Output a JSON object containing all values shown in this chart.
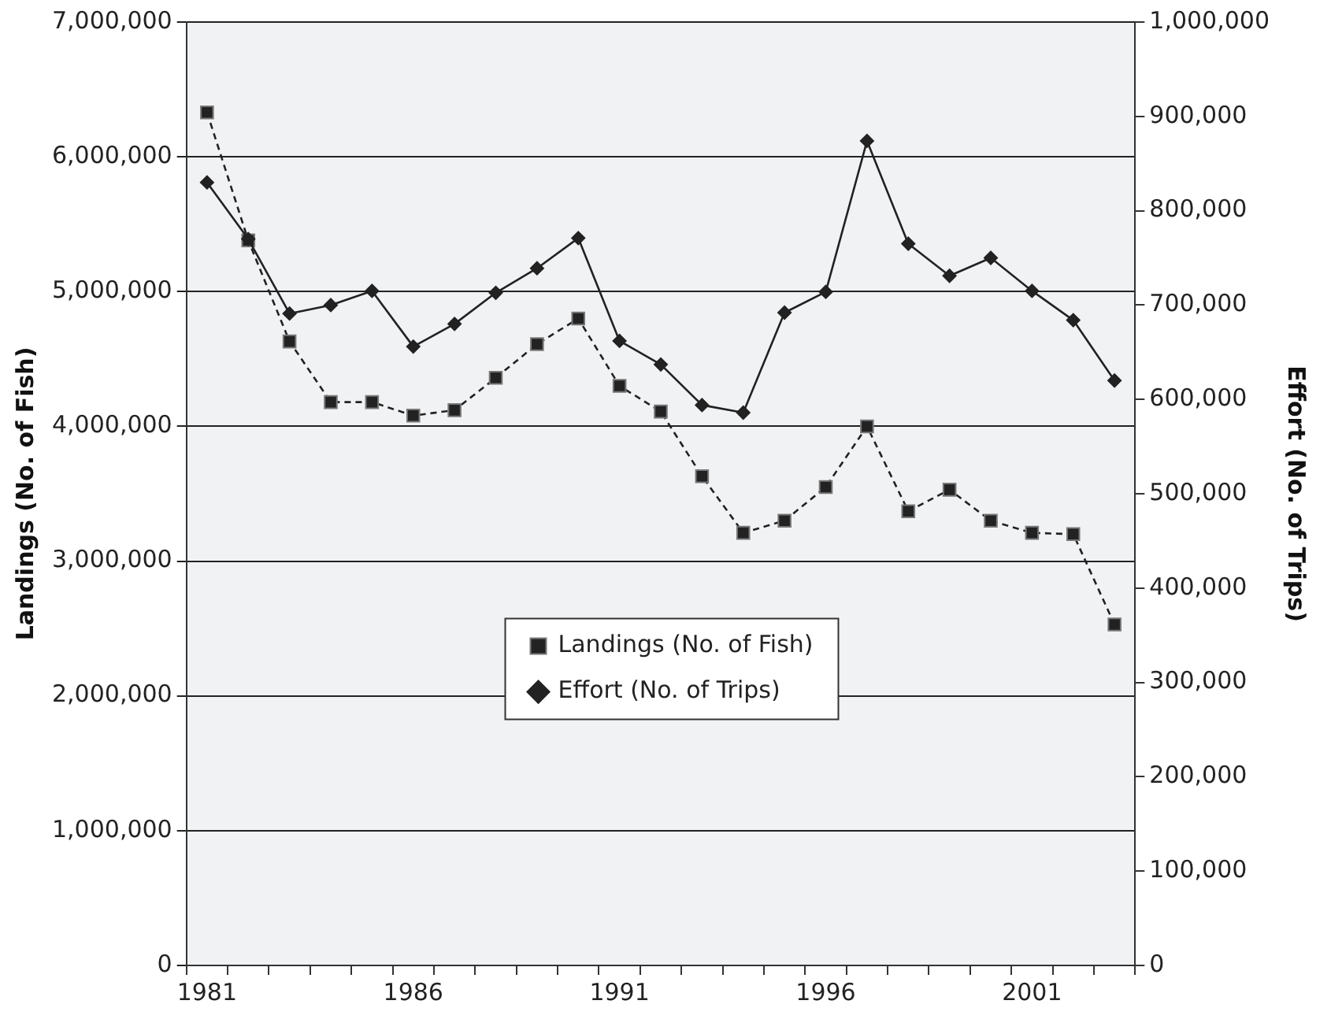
{
  "chart_data": {
    "type": "line",
    "categories": [
      "1981",
      null,
      null,
      null,
      null,
      "1986",
      null,
      null,
      null,
      null,
      "1991",
      null,
      null,
      null,
      null,
      "1996",
      null,
      null,
      null,
      null,
      "2001",
      null,
      null
    ],
    "series": [
      {
        "name": "Landings (No. of Fish)",
        "color": "#222222",
        "marker": "square",
        "line_style": "dashed",
        "axis": "y",
        "values": [
          6330000,
          5380000,
          4630000,
          4180000,
          4180000,
          4080000,
          4120000,
          4360000,
          4610000,
          4800000,
          4300000,
          4110000,
          3630000,
          3210000,
          3300000,
          3550000,
          4000000,
          3370000,
          3530000,
          3300000,
          3210000,
          3200000,
          2530000
        ]
      },
      {
        "name": "Effort (No. of Trips)",
        "color": "#222222",
        "marker": "diamond",
        "line_style": "solid",
        "axis": "y2",
        "values": [
          830000,
          770000,
          691000,
          700000,
          715000,
          656000,
          680000,
          713000,
          739000,
          771000,
          662000,
          637000,
          594000,
          586000,
          692000,
          714000,
          874000,
          765000,
          731000,
          750000,
          715000,
          684000,
          620000
        ]
      }
    ],
    "ylabel": "Landings (No. of Fish)",
    "y2label": "Effort (No. of Trips)",
    "ylim": [
      0,
      7000000
    ],
    "yticks": [
      {
        "value": 0,
        "label": "0"
      },
      {
        "value": 1000000,
        "label": "1,000,000"
      },
      {
        "value": 2000000,
        "label": "2,000,000"
      },
      {
        "value": 3000000,
        "label": "3,000,000"
      },
      {
        "value": 4000000,
        "label": "4,000,000"
      },
      {
        "value": 5000000,
        "label": "5,000,000"
      },
      {
        "value": 6000000,
        "label": "6,000,000"
      },
      {
        "value": 7000000,
        "label": "7,000,000"
      }
    ],
    "y2lim": [
      0,
      1000000
    ],
    "y2ticks": [
      {
        "value": 0,
        "label": "0"
      },
      {
        "value": 100000,
        "label": "100,000"
      },
      {
        "value": 200000,
        "label": "200,000"
      },
      {
        "value": 300000,
        "label": "300,000"
      },
      {
        "value": 400000,
        "label": "400,000"
      },
      {
        "value": 500000,
        "label": "500,000"
      },
      {
        "value": 600000,
        "label": "600,000"
      },
      {
        "value": 700000,
        "label": "700,000"
      },
      {
        "value": 800000,
        "label": "800,000"
      },
      {
        "value": 900000,
        "label": "900,000"
      },
      {
        "value": 1000000,
        "label": "1,000,000"
      }
    ],
    "grid": "y",
    "legend": "bottom"
  }
}
